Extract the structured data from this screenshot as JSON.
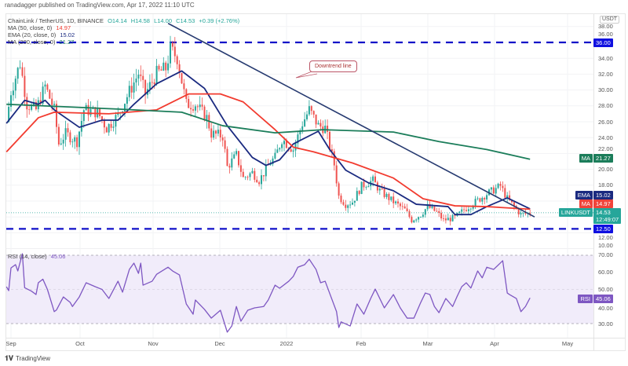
{
  "header": {
    "publisher": "ranadagger published on TradingView.com, Apr 17, 2022 11:10 UTC",
    "symbol": "ChainLink / TetherUS, 1D, BINANCE",
    "open": "O14.14",
    "high": "H14.58",
    "low": "L14.00",
    "close": "C14.53",
    "change": "+0.39 (+2.76%)",
    "ma50_label": "MA (50, close, 0)",
    "ma50_value": "14.97",
    "ema20_label": "EMA (20, close, 0)",
    "ema20_value": "15.02",
    "ma200_label": "MA (200, close, 0)",
    "ma200_value": "21.27"
  },
  "annotation": {
    "text": "Downtrend line"
  },
  "price_axis": {
    "currency": "USDT",
    "ticks": [
      "38.00",
      "36.00",
      "34.00",
      "32.00",
      "30.00",
      "28.00",
      "26.00",
      "24.00",
      "22.00",
      "20.00",
      "18.00",
      "12.00",
      "10.00"
    ],
    "tags": {
      "support_high": "36.00",
      "support_low": "12.50",
      "ma200_name": "MA",
      "ma200": "21.27",
      "ema_name": "EMA",
      "ema": "15.02",
      "ma50_name": "MA",
      "ma50": "14.97",
      "symbol_name": "LINKUSDT",
      "last": "14.53",
      "countdown": "12:49:07"
    }
  },
  "rsi_panel": {
    "label": "RSI (14, close)",
    "value": "45.06",
    "ticks": [
      "70.00",
      "60.00",
      "50.00",
      "40.00",
      "30.00"
    ],
    "tag_name": "RSI",
    "tag_value": "45.06"
  },
  "time_axis": [
    "Sep",
    "Oct",
    "Nov",
    "Dec",
    "2022",
    "Feb",
    "Mar",
    "Apr",
    "May"
  ],
  "footer": {
    "brand": "TradingView"
  },
  "colors": {
    "up": "#26a69a",
    "down": "#ef5350",
    "ema20": "#1a2a80",
    "ma50": "#f23b2f",
    "ma200": "#1b7d5a",
    "horizontal_levels": "#1010c8",
    "trendline": "#263a70",
    "rsi": "#7e57c2",
    "rsi_band": "#f1ecfa"
  },
  "chart_data": [
    {
      "type": "candlestick",
      "title": "ChainLink / TetherUS, 1D, BINANCE",
      "ylim": [
        9.5,
        39
      ],
      "grid": true,
      "horizontal_levels": [
        36.0,
        12.5
      ],
      "trendline": {
        "from": [
          "2021-11-09",
          38.4
        ],
        "to": [
          "2022-04-19",
          14.0
        ],
        "label": "Downtrend line"
      },
      "close_path": [
        [
          "2021-08-30",
          26.0
        ],
        [
          "2021-09-01",
          29.8
        ],
        [
          "2021-09-05",
          33.4
        ],
        [
          "2021-09-08",
          28.2
        ],
        [
          "2021-09-12",
          27.5
        ],
        [
          "2021-09-16",
          30.5
        ],
        [
          "2021-09-20",
          27.5
        ],
        [
          "2021-09-22",
          23.2
        ],
        [
          "2021-09-25",
          24.5
        ],
        [
          "2021-09-30",
          23.5
        ],
        [
          "2021-10-03",
          27.5
        ],
        [
          "2021-10-09",
          27.2
        ],
        [
          "2021-10-13",
          25.2
        ],
        [
          "2021-10-18",
          26.8
        ],
        [
          "2021-10-23",
          29.8
        ],
        [
          "2021-10-27",
          32.1
        ],
        [
          "2021-10-30",
          29.5
        ],
        [
          "2021-11-04",
          32.1
        ],
        [
          "2021-11-08",
          32.7
        ],
        [
          "2021-11-10",
          35.1
        ],
        [
          "2021-11-13",
          34.1
        ],
        [
          "2021-11-17",
          28.2
        ],
        [
          "2021-11-21",
          28.2
        ],
        [
          "2021-11-26",
          26.5
        ],
        [
          "2021-11-28",
          24.5
        ],
        [
          "2021-12-03",
          24.2
        ],
        [
          "2021-12-05",
          20.3
        ],
        [
          "2021-12-09",
          21.8
        ],
        [
          "2021-12-12",
          18.9
        ],
        [
          "2021-12-16",
          19.6
        ],
        [
          "2021-12-19",
          18.6
        ],
        [
          "2021-12-24",
          20.9
        ],
        [
          "2021-12-26",
          21.5
        ],
        [
          "2021-12-29",
          23.8
        ],
        [
          "2022-01-03",
          22.5
        ],
        [
          "2022-01-07",
          25.8
        ],
        [
          "2022-01-10",
          27.5
        ],
        [
          "2022-01-14",
          25.5
        ],
        [
          "2022-01-17",
          25.2
        ],
        [
          "2022-01-21",
          20.6
        ],
        [
          "2022-01-23",
          16.6
        ],
        [
          "2022-01-26",
          15.6
        ],
        [
          "2022-01-29",
          15.9
        ],
        [
          "2022-02-02",
          17.9
        ],
        [
          "2022-02-07",
          18.6
        ],
        [
          "2022-02-10",
          17.3
        ],
        [
          "2022-02-16",
          15.9
        ],
        [
          "2022-02-21",
          14.9
        ],
        [
          "2022-02-24",
          13.6
        ],
        [
          "2022-02-28",
          14.3
        ],
        [
          "2022-03-03",
          15.3
        ],
        [
          "2022-03-07",
          14.6
        ],
        [
          "2022-03-10",
          13.6
        ],
        [
          "2022-03-15",
          13.9
        ],
        [
          "2022-03-19",
          14.9
        ],
        [
          "2022-03-24",
          15.9
        ],
        [
          "2022-03-29",
          16.9
        ],
        [
          "2022-04-04",
          17.9
        ],
        [
          "2022-04-07",
          16.3
        ],
        [
          "2022-04-10",
          15.3
        ],
        [
          "2022-04-13",
          14.3
        ],
        [
          "2022-04-17",
          14.53
        ]
      ],
      "series": [
        {
          "name": "EMA (20, close, 0)",
          "points": [
            [
              "2021-08-30",
              25.8
            ],
            [
              "2021-09-07",
              28.7
            ],
            [
              "2021-09-13",
              28.2
            ],
            [
              "2021-09-16",
              28.7
            ],
            [
              "2021-09-20",
              27.5
            ],
            [
              "2021-10-01",
              25.3
            ],
            [
              "2021-10-11",
              26.2
            ],
            [
              "2021-10-18",
              26.2
            ],
            [
              "2021-10-25",
              28.2
            ],
            [
              "2021-11-04",
              30.8
            ],
            [
              "2021-11-15",
              32.4
            ],
            [
              "2021-11-25",
              30.2
            ],
            [
              "2021-12-05",
              25.5
            ],
            [
              "2021-12-16",
              21.5
            ],
            [
              "2021-12-22",
              20.5
            ],
            [
              "2021-12-28",
              21.2
            ],
            [
              "2022-01-03",
              23.2
            ],
            [
              "2022-01-14",
              24.8
            ],
            [
              "2022-01-19",
              22.5
            ],
            [
              "2022-01-26",
              19.9
            ],
            [
              "2022-02-05",
              18.3
            ],
            [
              "2022-02-16",
              17.3
            ],
            [
              "2022-02-26",
              15.6
            ],
            [
              "2022-03-12",
              15.3
            ],
            [
              "2022-03-15",
              14.3
            ],
            [
              "2022-03-22",
              14.3
            ],
            [
              "2022-03-29",
              15.3
            ],
            [
              "2022-04-07",
              16.4
            ],
            [
              "2022-04-17",
              15.02
            ]
          ]
        },
        {
          "name": "MA (50, close, 0)",
          "points": [
            [
              "2021-08-30",
              22.2
            ],
            [
              "2021-09-13",
              26.5
            ],
            [
              "2021-09-20",
              27.2
            ],
            [
              "2021-10-14",
              27.0
            ],
            [
              "2021-11-04",
              27.5
            ],
            [
              "2021-11-18",
              29.5
            ],
            [
              "2021-12-02",
              29.5
            ],
            [
              "2021-12-12",
              28.5
            ],
            [
              "2021-12-26",
              25.0
            ],
            [
              "2022-01-03",
              22.8
            ],
            [
              "2022-01-12",
              22.2
            ],
            [
              "2022-01-29",
              20.8
            ],
            [
              "2022-02-16",
              18.9
            ],
            [
              "2022-03-01",
              16.3
            ],
            [
              "2022-03-15",
              15.4
            ],
            [
              "2022-03-29",
              15.3
            ],
            [
              "2022-04-17",
              14.97
            ]
          ]
        },
        {
          "name": "MA (200, close, 0)",
          "points": [
            [
              "2021-08-30",
              28.2
            ],
            [
              "2021-10-18",
              27.6
            ],
            [
              "2021-11-15",
              27.2
            ],
            [
              "2021-12-03",
              25.5
            ],
            [
              "2021-12-26",
              24.6
            ],
            [
              "2022-01-16",
              25.0
            ],
            [
              "2022-02-16",
              24.7
            ],
            [
              "2022-03-08",
              23.5
            ],
            [
              "2022-03-29",
              22.5
            ],
            [
              "2022-04-17",
              21.27
            ]
          ]
        }
      ]
    },
    {
      "type": "line",
      "title": "RSI (14, close)",
      "ylim": [
        24,
        72
      ],
      "bands": [
        30,
        70
      ],
      "series": [
        {
          "name": "RSI (14, close)",
          "points": [
            [
              "2021-08-30",
              51.6
            ],
            [
              "2021-08-31",
              49.3
            ],
            [
              "2021-09-01",
              62.6
            ],
            [
              "2021-09-03",
              64.5
            ],
            [
              "2021-09-04",
              60.8
            ],
            [
              "2021-09-06",
              70.9
            ],
            [
              "2021-09-07",
              51.0
            ],
            [
              "2021-09-10",
              49.0
            ],
            [
              "2021-09-12",
              47.0
            ],
            [
              "2021-09-13",
              53.9
            ],
            [
              "2021-09-15",
              56.0
            ],
            [
              "2021-09-17",
              50.0
            ],
            [
              "2021-09-20",
              37.0
            ],
            [
              "2021-09-21",
              38.0
            ],
            [
              "2021-09-24",
              45.6
            ],
            [
              "2021-09-27",
              42.4
            ],
            [
              "2021-09-28",
              40.0
            ],
            [
              "2021-10-01",
              45.6
            ],
            [
              "2021-10-04",
              53.9
            ],
            [
              "2021-10-08",
              51.6
            ],
            [
              "2021-10-11",
              50.0
            ],
            [
              "2021-10-14",
              44.7
            ],
            [
              "2021-10-18",
              54.8
            ],
            [
              "2021-10-20",
              48.4
            ],
            [
              "2021-10-23",
              61.7
            ],
            [
              "2021-10-25",
              65.4
            ],
            [
              "2021-10-27",
              59.4
            ],
            [
              "2021-10-28",
              65.4
            ],
            [
              "2021-10-29",
              52.5
            ],
            [
              "2021-11-02",
              54.8
            ],
            [
              "2021-11-04",
              58.9
            ],
            [
              "2021-11-09",
              63.0
            ],
            [
              "2021-11-11",
              60.8
            ],
            [
              "2021-11-14",
              58.5
            ],
            [
              "2021-11-17",
              41.5
            ],
            [
              "2021-11-20",
              35.5
            ],
            [
              "2021-11-21",
              43.8
            ],
            [
              "2021-11-25",
              38.3
            ],
            [
              "2021-11-28",
              33.2
            ],
            [
              "2021-12-02",
              37.8
            ],
            [
              "2021-12-05",
              25.0
            ],
            [
              "2021-12-07",
              28.6
            ],
            [
              "2021-12-09",
              40.0
            ],
            [
              "2021-12-11",
              31.4
            ],
            [
              "2021-12-14",
              37.8
            ],
            [
              "2021-12-17",
              39.2
            ],
            [
              "2021-12-21",
              40.0
            ],
            [
              "2021-12-23",
              43.8
            ],
            [
              "2021-12-26",
              52.5
            ],
            [
              "2021-12-28",
              50.7
            ],
            [
              "2022-01-01",
              54.8
            ],
            [
              "2022-01-03",
              57.6
            ],
            [
              "2022-01-05",
              63.0
            ],
            [
              "2022-01-08",
              64.5
            ],
            [
              "2022-01-10",
              67.7
            ],
            [
              "2022-01-13",
              61.7
            ],
            [
              "2022-01-15",
              53.9
            ],
            [
              "2022-01-17",
              54.8
            ],
            [
              "2022-01-22",
              37.0
            ],
            [
              "2022-01-23",
              27.7
            ],
            [
              "2022-01-24",
              31.0
            ],
            [
              "2022-01-28",
              28.6
            ],
            [
              "2022-01-31",
              41.5
            ],
            [
              "2022-02-03",
              35.5
            ],
            [
              "2022-02-06",
              44.7
            ],
            [
              "2022-02-08",
              50.2
            ],
            [
              "2022-02-12",
              39.2
            ],
            [
              "2022-02-16",
              47.0
            ],
            [
              "2022-02-19",
              39.2
            ],
            [
              "2022-02-22",
              33.2
            ],
            [
              "2022-02-25",
              33.2
            ],
            [
              "2022-02-28",
              42.4
            ],
            [
              "2022-03-02",
              47.9
            ],
            [
              "2022-03-04",
              47.0
            ],
            [
              "2022-03-06",
              40.0
            ],
            [
              "2022-03-08",
              36.4
            ],
            [
              "2022-03-11",
              44.7
            ],
            [
              "2022-03-14",
              40.0
            ],
            [
              "2022-03-16",
              46.0
            ],
            [
              "2022-03-18",
              51.6
            ],
            [
              "2022-03-20",
              53.9
            ],
            [
              "2022-03-22",
              50.8
            ],
            [
              "2022-03-25",
              60.8
            ],
            [
              "2022-03-27",
              56.8
            ],
            [
              "2022-03-29",
              63.0
            ],
            [
              "2022-04-01",
              61.7
            ],
            [
              "2022-04-05",
              66.8
            ],
            [
              "2022-04-07",
              47.9
            ],
            [
              "2022-04-08",
              47.0
            ],
            [
              "2022-04-11",
              44.7
            ],
            [
              "2022-04-13",
              37.0
            ],
            [
              "2022-04-15",
              40.0
            ],
            [
              "2022-04-17",
              45.06
            ]
          ]
        }
      ]
    }
  ]
}
